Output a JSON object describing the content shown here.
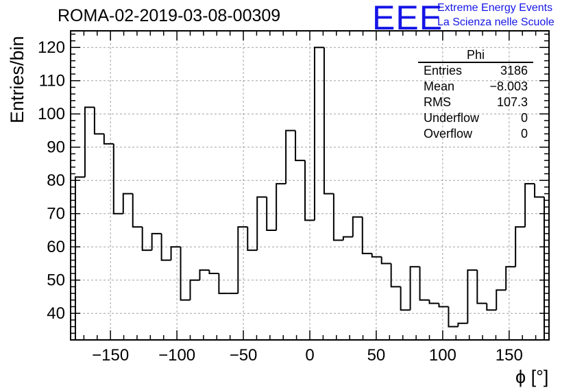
{
  "header": {
    "title": "ROMA-02-2019-03-08-00309",
    "logo_text": "EEE",
    "logo_line1": "Extreme Energy Events",
    "logo_line2": "La Scienza nelle Scuole"
  },
  "stats": {
    "name": "Phi",
    "rows": [
      {
        "label": "Entries",
        "value": "3186"
      },
      {
        "label": "Mean",
        "value": "−8.003"
      },
      {
        "label": "RMS",
        "value": "107.3"
      },
      {
        "label": "Underflow",
        "value": "0"
      },
      {
        "label": "Overflow",
        "value": "0"
      }
    ]
  },
  "chart_data": {
    "type": "bar",
    "style": "step-histogram",
    "title": "ROMA-02-2019-03-08-00309",
    "xlabel": "ϕ [°]",
    "ylabel": "Entries/bin",
    "xlim": [
      -180,
      180
    ],
    "ylim": [
      32,
      125
    ],
    "bin_width": 7.2,
    "grid": true,
    "x_ticks": [
      -150,
      -100,
      -50,
      0,
      50,
      100,
      150
    ],
    "x_tick_labels": [
      "−150",
      "−100",
      "−50",
      "0",
      "50",
      "100",
      "150"
    ],
    "y_ticks": [
      40,
      50,
      60,
      70,
      80,
      90,
      100,
      110,
      120
    ],
    "y_tick_labels": [
      "40",
      "50",
      "60",
      "70",
      "80",
      "90",
      "100",
      "110",
      "120"
    ],
    "bin_edges_start": -176.4,
    "values": [
      81,
      102,
      94,
      91,
      70,
      76,
      66,
      59,
      64,
      56,
      60,
      44,
      50,
      53,
      52,
      46,
      46,
      66,
      59,
      75,
      65,
      79,
      95,
      86,
      68,
      120,
      76,
      62,
      63,
      69,
      58,
      57,
      55,
      48,
      41,
      54,
      44,
      43,
      42,
      36,
      37,
      53,
      43,
      41,
      47,
      54,
      66,
      79,
      75
    ],
    "colors": {
      "line": "#000000",
      "grid": "#a0a0a0",
      "logo": "#1515e6"
    }
  }
}
